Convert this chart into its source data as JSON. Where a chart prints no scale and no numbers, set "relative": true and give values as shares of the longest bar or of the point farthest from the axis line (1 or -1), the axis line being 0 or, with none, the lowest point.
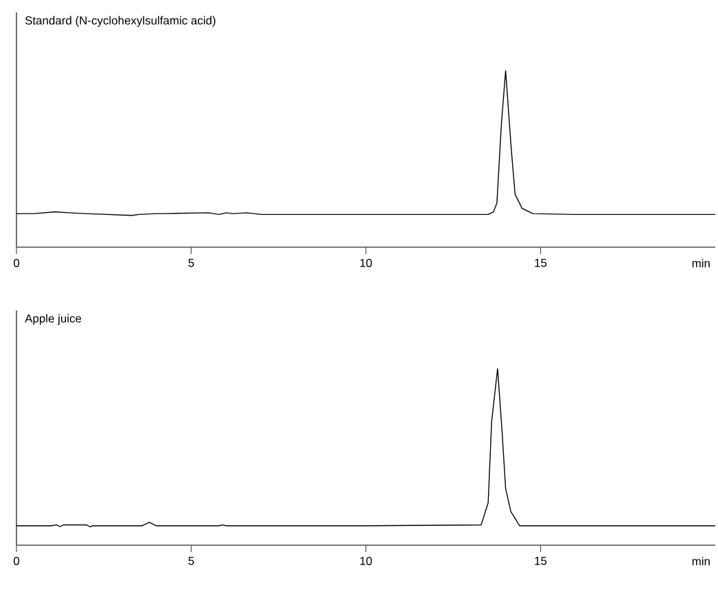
{
  "chart_data": [
    {
      "type": "line",
      "title": "Standard (N-cyclohexylsulfamic acid)",
      "xlabel": "min",
      "relative": true,
      "xlim": [
        0,
        20
      ],
      "xticks": [
        0,
        5,
        10,
        15
      ],
      "tick_labels": "x",
      "grid": false,
      "legend": false,
      "marker": "none",
      "line_style": "solid",
      "series": [
        {
          "color": "#000000",
          "x": [
            0,
            0.5,
            1.1,
            1.5,
            2.0,
            3.3,
            3.5,
            4.0,
            4.2,
            5.5,
            5.8,
            6.0,
            6.2,
            6.6,
            7.0,
            10.0,
            13.5,
            13.65,
            13.75,
            13.88,
            14.0,
            14.16,
            14.27,
            14.47,
            14.78,
            16.0,
            20.0
          ],
          "values": [
            0.19,
            0.19,
            0.2,
            0.195,
            0.19,
            0.18,
            0.185,
            0.19,
            0.19,
            0.195,
            0.185,
            0.195,
            0.19,
            0.195,
            0.185,
            0.185,
            0.185,
            0.2,
            0.25,
            0.7,
            1.0,
            0.56,
            0.3,
            0.22,
            0.19,
            0.185,
            0.185
          ]
        }
      ]
    },
    {
      "type": "line",
      "title": "Apple juice",
      "xlabel": "min",
      "relative": true,
      "xlim": [
        0,
        20
      ],
      "xticks": [
        0,
        5,
        10,
        15
      ],
      "tick_labels": "x",
      "grid": false,
      "legend": false,
      "marker": "none",
      "line_style": "solid",
      "series": [
        {
          "color": "#000000",
          "x": [
            0,
            1.0,
            1.15,
            1.25,
            1.35,
            2.0,
            2.1,
            2.2,
            3.6,
            3.8,
            4.0,
            5.8,
            5.9,
            6.0,
            10.0,
            13.3,
            13.5,
            13.6,
            13.77,
            13.9,
            14.0,
            14.15,
            14.4,
            16.0,
            20.0
          ],
          "values": [
            0.11,
            0.11,
            0.115,
            0.105,
            0.115,
            0.115,
            0.105,
            0.11,
            0.11,
            0.13,
            0.11,
            0.11,
            0.115,
            0.11,
            0.11,
            0.115,
            0.24,
            0.7,
            1.0,
            0.64,
            0.32,
            0.19,
            0.11,
            0.11,
            0.11
          ]
        }
      ]
    }
  ]
}
